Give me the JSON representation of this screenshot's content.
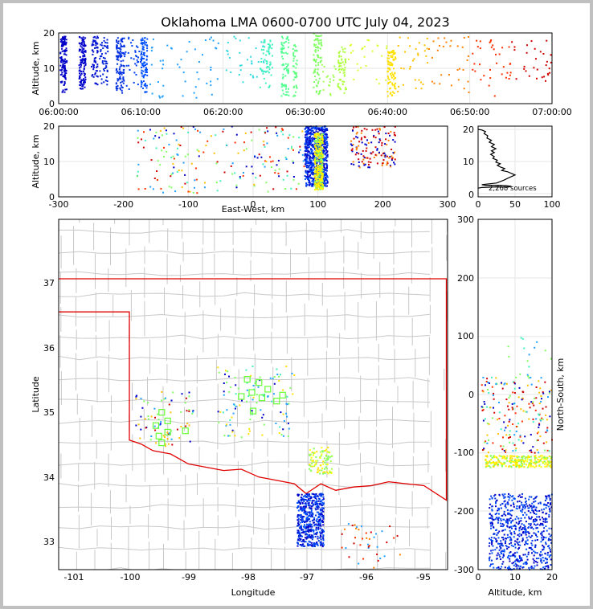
{
  "title": "Oklahoma LMA 0600-0700 UTC July 04, 2023",
  "colors": {
    "county": "#c8c8c8",
    "state": "#e00000",
    "frame": "#000000"
  },
  "panels": {
    "time_altitude": {
      "ylabel": "Altitude, km",
      "ylim": [
        0,
        20
      ],
      "yticks": [
        "0",
        "10",
        "20"
      ],
      "xticks": [
        "06:00:00",
        "06:10:00",
        "06:20:00",
        "06:30:00",
        "06:40:00",
        "06:50:00",
        "07:00:00"
      ]
    },
    "ew_altitude": {
      "xlabel": "East-West, km",
      "ylabel": "Altitude, km",
      "xlim": [
        -300,
        300
      ],
      "ylim": [
        0,
        20
      ],
      "xticks": [
        "-300",
        "-200",
        "-100",
        "0",
        "100",
        "200",
        "300"
      ],
      "yticks": [
        "0",
        "10",
        "20"
      ]
    },
    "histogram": {
      "xticks": [
        "0",
        "50",
        "100"
      ],
      "yticks": [
        "0",
        "10",
        "20"
      ],
      "annotation": "2,268 sources"
    },
    "map": {
      "xlabel": "Longitude",
      "ylabel": "Latitude",
      "xticks": [
        "-101",
        "-100",
        "-99",
        "-98",
        "-97",
        "-96",
        "-95"
      ],
      "yticks": [
        "33",
        "34",
        "35",
        "36",
        "37"
      ]
    },
    "altitude_ns": {
      "xlabel": "Altitude, km",
      "ylabel": "North-South, km",
      "xticks": [
        "0",
        "10",
        "20"
      ],
      "yticks": [
        "-300",
        "-200",
        "-100",
        "0",
        "100",
        "200",
        "300"
      ]
    }
  },
  "chart_data": [
    {
      "type": "scatter",
      "title": "Oklahoma LMA 0600-0700 UTC July 04, 2023",
      "ylabel": "Altitude, km",
      "xlim": [
        "06:00:00",
        "07:00:00"
      ],
      "ylim": [
        0,
        20
      ],
      "grid": true,
      "clusters": [
        {
          "t_min": [
            0.2,
            1.0
          ],
          "alt": [
            3,
            19
          ],
          "color": "#0000c8",
          "n": 130
        },
        {
          "t_min": [
            2.5,
            3.3
          ],
          "alt": [
            4,
            19
          ],
          "color": "#0000cc",
          "n": 120
        },
        {
          "t_min": [
            4.0,
            4.8
          ],
          "alt": [
            5,
            19
          ],
          "color": "#0010d0",
          "n": 60
        },
        {
          "t_min": [
            5.0,
            6.0
          ],
          "alt": [
            5,
            19
          ],
          "color": "#0020d8",
          "n": 50
        },
        {
          "t_min": [
            7.0,
            8.0
          ],
          "alt": [
            3,
            19
          ],
          "color": "#0030e0",
          "n": 110
        },
        {
          "t_min": [
            8.0,
            10.5
          ],
          "alt": [
            4,
            19
          ],
          "color": "#0040f0",
          "n": 40
        },
        {
          "t_min": [
            10.0,
            10.8
          ],
          "alt": [
            3,
            19
          ],
          "color": "#0050ff",
          "n": 90
        },
        {
          "t_min": [
            11.0,
            20.0
          ],
          "alt": [
            1,
            19
          ],
          "color": "#20a0ff",
          "n": 50
        },
        {
          "t_min": [
            20.0,
            25.0
          ],
          "alt": [
            6,
            19
          ],
          "color": "#30d8e0",
          "n": 35
        },
        {
          "t_min": [
            24.5,
            26.0
          ],
          "alt": [
            4,
            19
          ],
          "color": "#40f0c0",
          "n": 60
        },
        {
          "t_min": [
            27.0,
            28.0
          ],
          "alt": [
            2,
            19
          ],
          "color": "#50ff90",
          "n": 70
        },
        {
          "t_min": [
            28.5,
            29.0
          ],
          "alt": [
            2,
            17
          ],
          "color": "#60ff80",
          "n": 40
        },
        {
          "t_min": [
            31.0,
            32.0
          ],
          "alt": [
            2,
            20
          ],
          "color": "#80ff60",
          "n": 80
        },
        {
          "t_min": [
            32.0,
            34.0
          ],
          "alt": [
            2,
            12
          ],
          "color": "#a0ff50",
          "n": 20
        },
        {
          "t_min": [
            34.0,
            35.0
          ],
          "alt": [
            2,
            16
          ],
          "color": "#b0ff40",
          "n": 60
        },
        {
          "t_min": [
            35.0,
            40.0
          ],
          "alt": [
            5,
            18
          ],
          "color": "#d8ff30",
          "n": 25
        },
        {
          "t_min": [
            40.0,
            41.0
          ],
          "alt": [
            2,
            15
          ],
          "color": "#ffe000",
          "n": 90
        },
        {
          "t_min": [
            41.0,
            45.0
          ],
          "alt": [
            3,
            19
          ],
          "color": "#ffc000",
          "n": 30
        },
        {
          "t_min": [
            45.0,
            50.0
          ],
          "alt": [
            3,
            19
          ],
          "color": "#ff8000",
          "n": 30
        },
        {
          "t_min": [
            50.0,
            55.0
          ],
          "alt": [
            2,
            18
          ],
          "color": "#ff3000",
          "n": 35
        },
        {
          "t_min": [
            55.0,
            60.0
          ],
          "alt": [
            5,
            19
          ],
          "color": "#d00000",
          "n": 30
        }
      ]
    },
    {
      "type": "scatter",
      "xlabel": "East-West, km",
      "ylabel": "Altitude, km",
      "xlim": [
        -300,
        300
      ],
      "ylim": [
        0,
        20
      ],
      "grid": true,
      "clusters": [
        {
          "x": [
            80,
            115
          ],
          "alt": [
            3,
            20
          ],
          "colors": [
            "#0000c8",
            "#0030e0",
            "#0050ff"
          ],
          "n": 700
        },
        {
          "x": [
            95,
            108
          ],
          "alt": [
            2,
            18
          ],
          "colors": [
            "#80ff60",
            "#ffe000",
            "#ffff00"
          ],
          "n": 320
        },
        {
          "x": [
            -180,
            80
          ],
          "alt": [
            1,
            20
          ],
          "colors": [
            "#0000c8",
            "#20a0ff",
            "#40f0c0",
            "#ff3000",
            "#d00000",
            "#ffc000",
            "#80ff60"
          ],
          "n": 200
        },
        {
          "x": [
            150,
            220
          ],
          "alt": [
            8,
            20
          ],
          "colors": [
            "#0000c8",
            "#d00000",
            "#ff8000"
          ],
          "n": 140
        }
      ]
    },
    {
      "type": "line",
      "annotation": "2,268 sources",
      "xlim": [
        0,
        100
      ],
      "ylim": [
        0,
        20
      ],
      "profile": [
        [
          0,
          1.7
        ],
        [
          5,
          1.9
        ],
        [
          25,
          2.1
        ],
        [
          40,
          2.0
        ],
        [
          45,
          2.3
        ],
        [
          30,
          2.6
        ],
        [
          10,
          2.6
        ],
        [
          5,
          2.8
        ],
        [
          25,
          3.3
        ],
        [
          35,
          4.2
        ],
        [
          43,
          5.1
        ],
        [
          50,
          5.8
        ],
        [
          45,
          6.3
        ],
        [
          40,
          6.8
        ],
        [
          32,
          7.2
        ],
        [
          36,
          7.8
        ],
        [
          30,
          8.3
        ],
        [
          26,
          8.8
        ],
        [
          30,
          9.3
        ],
        [
          24,
          9.8
        ],
        [
          26,
          10.4
        ],
        [
          20,
          11.0
        ],
        [
          22,
          11.5
        ],
        [
          17,
          12.2
        ],
        [
          22,
          12.8
        ],
        [
          18,
          13.3
        ],
        [
          24,
          14.0
        ],
        [
          18,
          14.6
        ],
        [
          22,
          15.3
        ],
        [
          15,
          16.0
        ],
        [
          18,
          16.6
        ],
        [
          12,
          17.3
        ],
        [
          13,
          18.0
        ],
        [
          8,
          18.7
        ],
        [
          10,
          19.3
        ],
        [
          5,
          19.8
        ],
        [
          0,
          20.0
        ]
      ]
    },
    {
      "type": "scatter",
      "xlabel": "Longitude",
      "ylabel": "Latitude",
      "xlim": [
        -101.2,
        -94.6
      ],
      "ylim": [
        32.6,
        37.9
      ],
      "clusters": [
        {
          "lon": [
            -97.15,
            -96.7
          ],
          "lat": [
            32.95,
            33.75
          ],
          "colors": [
            "#0000c8",
            "#0030e0",
            "#0050ff"
          ],
          "n": 500
        },
        {
          "lon": [
            -96.95,
            -96.55
          ],
          "lat": [
            34.05,
            34.45
          ],
          "colors": [
            "#80ff60",
            "#ffe000",
            "#ffff00",
            "#a0ff50"
          ],
          "n": 90
        },
        {
          "lon": [
            -99.9,
            -98.9
          ],
          "lat": [
            34.45,
            35.3
          ],
          "colors": [
            "#0000c8",
            "#20a0ff",
            "#d00000",
            "#80ff60",
            "#ffc000"
          ],
          "n": 70
        },
        {
          "lon": [
            -98.5,
            -97.2
          ],
          "lat": [
            34.6,
            35.7
          ],
          "colors": [
            "#0000c8",
            "#20a0ff",
            "#40f0c0",
            "#80ff60",
            "#ffe000"
          ],
          "n": 110
        },
        {
          "lon": [
            -96.4,
            -95.4
          ],
          "lat": [
            32.6,
            33.3
          ],
          "colors": [
            "#ff3000",
            "#d00000",
            "#ff8000",
            "#20a0ff"
          ],
          "n": 40
        }
      ],
      "stations": [
        [
          -98.0,
          35.48
        ],
        [
          -97.8,
          35.43
        ],
        [
          -97.65,
          35.33
        ],
        [
          -98.1,
          35.22
        ],
        [
          -97.92,
          35.28
        ],
        [
          -97.75,
          35.2
        ],
        [
          -97.5,
          35.15
        ],
        [
          -97.4,
          35.24
        ],
        [
          -97.9,
          35.0
        ],
        [
          -99.45,
          34.98
        ],
        [
          -99.35,
          34.85
        ],
        [
          -99.55,
          34.78
        ],
        [
          -99.35,
          34.68
        ],
        [
          -99.05,
          34.7
        ],
        [
          -99.5,
          34.62
        ],
        [
          -99.45,
          34.52
        ]
      ]
    },
    {
      "type": "scatter",
      "xlabel": "Altitude, km",
      "ylabel": "North-South, km",
      "xlim": [
        0,
        20
      ],
      "ylim": [
        -300,
        300
      ],
      "clusters": [
        {
          "alt": [
            3,
            20
          ],
          "ns": [
            -300,
            -170
          ],
          "colors": [
            "#0000c8",
            "#0030e0",
            "#0050ff"
          ],
          "n": 650
        },
        {
          "alt": [
            2,
            20
          ],
          "ns": [
            -125,
            -105
          ],
          "colors": [
            "#ffe000",
            "#ffff00",
            "#80ff60"
          ],
          "n": 260
        },
        {
          "alt": [
            1,
            20
          ],
          "ns": [
            -100,
            30
          ],
          "colors": [
            "#0000c8",
            "#20a0ff",
            "#40f0c0",
            "#80ff60",
            "#ff3000",
            "#d00000",
            "#ffc000"
          ],
          "n": 200
        },
        {
          "alt": [
            8,
            20
          ],
          "ns": [
            30,
            100
          ],
          "colors": [
            "#40f0c0",
            "#80ff60",
            "#20a0ff"
          ],
          "n": 15
        }
      ]
    }
  ]
}
